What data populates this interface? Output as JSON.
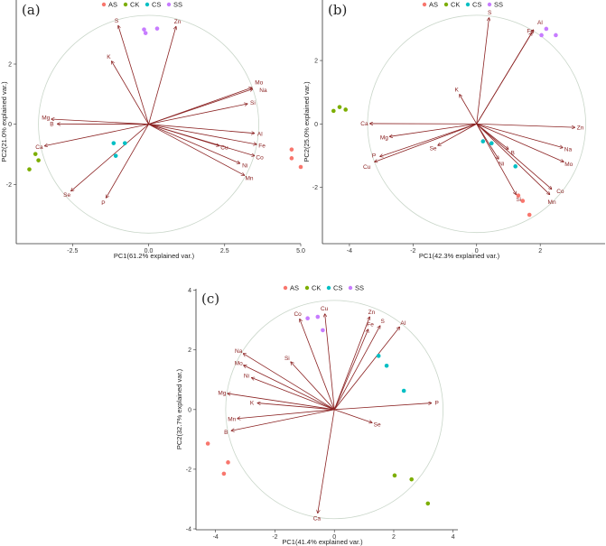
{
  "colors": {
    "AS": "#F8766D",
    "CK": "#7CAE00",
    "CS": "#00BFC4",
    "SS": "#C77CFF",
    "arrow": "#8B2323",
    "circle": "#C9D6C9"
  },
  "chart_data": [
    {
      "type": "scatter",
      "panel_label": "(a)",
      "xlabel": "PC1(61.2% explained var.)",
      "ylabel": "PC2(21.0% explained var.)",
      "xlim": [
        -4.35,
        5.0
      ],
      "ylim": [
        -3.97,
        4.13
      ],
      "xticks": [
        -2.5,
        0.0,
        2.5,
        5.0
      ],
      "xtick_labels": [
        "-2.5",
        "0.0",
        "2.5",
        "5.0"
      ],
      "yticks": [
        -2,
        0,
        2
      ],
      "ytick_labels": [
        "-2",
        "0",
        "2"
      ],
      "legend": [
        "AS",
        "CK",
        "CS",
        "SS"
      ],
      "legend_position": "top",
      "circle_radius": 3.62,
      "groups": [
        {
          "name": "AS",
          "points": [
            [
              4.7,
              -0.84
            ],
            [
              4.7,
              -1.13
            ],
            [
              5.0,
              -1.42
            ]
          ]
        },
        {
          "name": "CK",
          "points": [
            [
              -3.72,
              -0.99
            ],
            [
              -3.62,
              -1.2
            ],
            [
              -3.92,
              -1.5
            ]
          ]
        },
        {
          "name": "CS",
          "points": [
            [
              -1.15,
              -0.63
            ],
            [
              -0.78,
              -0.63
            ],
            [
              -1.08,
              -1.05
            ]
          ]
        },
        {
          "name": "SS",
          "points": [
            [
              -0.15,
              3.15
            ],
            [
              -0.1,
              3.03
            ],
            [
              0.28,
              3.18
            ]
          ]
        }
      ],
      "loadings": [
        {
          "var": "S",
          "x": -1.0,
          "y": 3.28
        },
        {
          "var": "Zn",
          "x": 0.9,
          "y": 3.25
        },
        {
          "var": "K",
          "x": -1.22,
          "y": 2.1
        },
        {
          "var": "Mo",
          "x": 3.4,
          "y": 1.22
        },
        {
          "var": "Na",
          "x": 3.42,
          "y": 1.17
        },
        {
          "var": "Si",
          "x": 3.25,
          "y": 0.68
        },
        {
          "var": "Al",
          "x": 3.48,
          "y": -0.3
        },
        {
          "var": "Fe",
          "x": 3.55,
          "y": -0.67
        },
        {
          "var": "Cu",
          "x": 2.32,
          "y": -0.72
        },
        {
          "var": "Co",
          "x": 3.48,
          "y": -1.05
        },
        {
          "var": "Ni",
          "x": 3.0,
          "y": -1.3
        },
        {
          "var": "Mn",
          "x": 3.15,
          "y": -1.7
        },
        {
          "var": "P",
          "x": -1.4,
          "y": -2.45
        },
        {
          "var": "Se",
          "x": -2.55,
          "y": -2.22
        },
        {
          "var": "Ca",
          "x": -3.42,
          "y": -0.72
        },
        {
          "var": "B",
          "x": -3.0,
          "y": 0.01
        },
        {
          "var": "Mg",
          "x": -3.2,
          "y": 0.17
        }
      ]
    },
    {
      "type": "scatter",
      "panel_label": "(b)",
      "xlabel": "PC1(42.3% explained var.)",
      "ylabel": "PC2(25.0% explained var.)",
      "xlim": [
        -4.85,
        4.04
      ],
      "ylim": [
        -3.78,
        3.91
      ],
      "xticks": [
        -4,
        -2,
        0,
        2
      ],
      "xtick_labels": [
        "-4",
        "-2",
        "0",
        "2"
      ],
      "yticks": [
        -2,
        0,
        2
      ],
      "ytick_labels": [
        "-2",
        "0",
        "2"
      ],
      "legend": [
        "AS",
        "CK",
        "CS",
        "SS"
      ],
      "legend_position": "top",
      "circle_radius": 3.43,
      "groups": [
        {
          "name": "AS",
          "points": [
            [
              1.31,
              -2.26
            ],
            [
              1.45,
              -2.43
            ],
            [
              1.66,
              -2.87
            ]
          ]
        },
        {
          "name": "CK",
          "points": [
            [
              -4.5,
              0.41
            ],
            [
              -4.31,
              0.53
            ],
            [
              -4.12,
              0.45
            ]
          ]
        },
        {
          "name": "CS",
          "points": [
            [
              0.2,
              -0.55
            ],
            [
              0.47,
              -0.61
            ],
            [
              1.22,
              -1.34
            ]
          ]
        },
        {
          "name": "SS",
          "points": [
            [
              2.04,
              2.8
            ],
            [
              2.19,
              3.0
            ],
            [
              2.49,
              2.8
            ]
          ]
        }
      ],
      "loadings": [
        {
          "var": "S",
          "x": 0.39,
          "y": 3.35
        },
        {
          "var": "Al",
          "x": 1.79,
          "y": 2.97
        },
        {
          "var": "Fe",
          "x": 1.74,
          "y": 2.88
        },
        {
          "var": "K",
          "x": -0.54,
          "y": 0.93
        },
        {
          "var": "Ca",
          "x": -3.36,
          "y": 0.01
        },
        {
          "var": "Mg",
          "x": -2.74,
          "y": -0.4
        },
        {
          "var": "Se",
          "x": -1.22,
          "y": -0.68
        },
        {
          "var": "P",
          "x": -3.04,
          "y": -1.03
        },
        {
          "var": "Cu",
          "x": -3.21,
          "y": -1.2
        },
        {
          "var": "Zn",
          "x": 3.09,
          "y": -0.11
        },
        {
          "var": "Na",
          "x": 2.71,
          "y": -0.75
        },
        {
          "var": "Mo",
          "x": 2.74,
          "y": -1.2
        },
        {
          "var": "B",
          "x": 1.0,
          "y": -0.8
        },
        {
          "var": "Ni",
          "x": 0.69,
          "y": -1.11
        },
        {
          "var": "Si",
          "x": 1.24,
          "y": -2.23
        },
        {
          "var": "Co",
          "x": 2.36,
          "y": -2.06
        },
        {
          "var": "Mn",
          "x": 2.3,
          "y": -2.23
        }
      ]
    },
    {
      "type": "scatter",
      "panel_label": "(c)",
      "xlabel": "PC1(41.4% explained var.)",
      "ylabel": "PC2(32.7% explained var.)",
      "xlim": [
        -4.66,
        4.16
      ],
      "ylim": [
        -4.03,
        4.05
      ],
      "xticks": [
        -4,
        -2,
        0,
        2,
        4
      ],
      "xtick_labels": [
        "-4",
        "-2",
        "0",
        "2",
        "4"
      ],
      "yticks": [
        -4,
        -2,
        0,
        2,
        4
      ],
      "ytick_labels": [
        "-4",
        "-2",
        "0",
        "2",
        "4"
      ],
      "legend": [
        "AS",
        "CK",
        "CS",
        "SS"
      ],
      "legend_position": "top",
      "circle_radius": 3.66,
      "groups": [
        {
          "name": "AS",
          "points": [
            [
              -4.26,
              -1.14
            ],
            [
              -3.58,
              -1.77
            ],
            [
              -3.72,
              -2.15
            ]
          ]
        },
        {
          "name": "CK",
          "points": [
            [
              2.03,
              -2.21
            ],
            [
              2.6,
              -2.34
            ],
            [
              3.15,
              -3.15
            ]
          ]
        },
        {
          "name": "CS",
          "points": [
            [
              1.49,
              1.8
            ],
            [
              1.76,
              1.47
            ],
            [
              2.34,
              0.63
            ]
          ]
        },
        {
          "name": "SS",
          "points": [
            [
              -0.9,
              3.06
            ],
            [
              -0.56,
              3.11
            ],
            [
              -0.39,
              2.66
            ]
          ]
        }
      ],
      "loadings": [
        {
          "var": "Co",
          "x": -1.17,
          "y": 3.04
        },
        {
          "var": "Cu",
          "x": -0.32,
          "y": 3.21
        },
        {
          "var": "Zn",
          "x": 1.19,
          "y": 3.11
        },
        {
          "var": "Fe",
          "x": 1.14,
          "y": 2.69
        },
        {
          "var": "S",
          "x": 1.54,
          "y": 2.81
        },
        {
          "var": "Al",
          "x": 2.2,
          "y": 2.77
        },
        {
          "var": "Na",
          "x": -3.07,
          "y": 1.88
        },
        {
          "var": "Mo",
          "x": -3.06,
          "y": 1.49
        },
        {
          "var": "Ni",
          "x": -2.79,
          "y": 1.07
        },
        {
          "var": "Si",
          "x": -1.47,
          "y": 1.6
        },
        {
          "var": "Mg",
          "x": -3.6,
          "y": 0.54
        },
        {
          "var": "K",
          "x": -2.59,
          "y": 0.22
        },
        {
          "var": "Mn",
          "x": -3.27,
          "y": -0.3
        },
        {
          "var": "B",
          "x": -3.47,
          "y": -0.71
        },
        {
          "var": "P",
          "x": 3.27,
          "y": 0.22
        },
        {
          "var": "Se",
          "x": 1.27,
          "y": -0.44
        },
        {
          "var": "Ca",
          "x": -0.56,
          "y": -3.47
        }
      ]
    }
  ]
}
